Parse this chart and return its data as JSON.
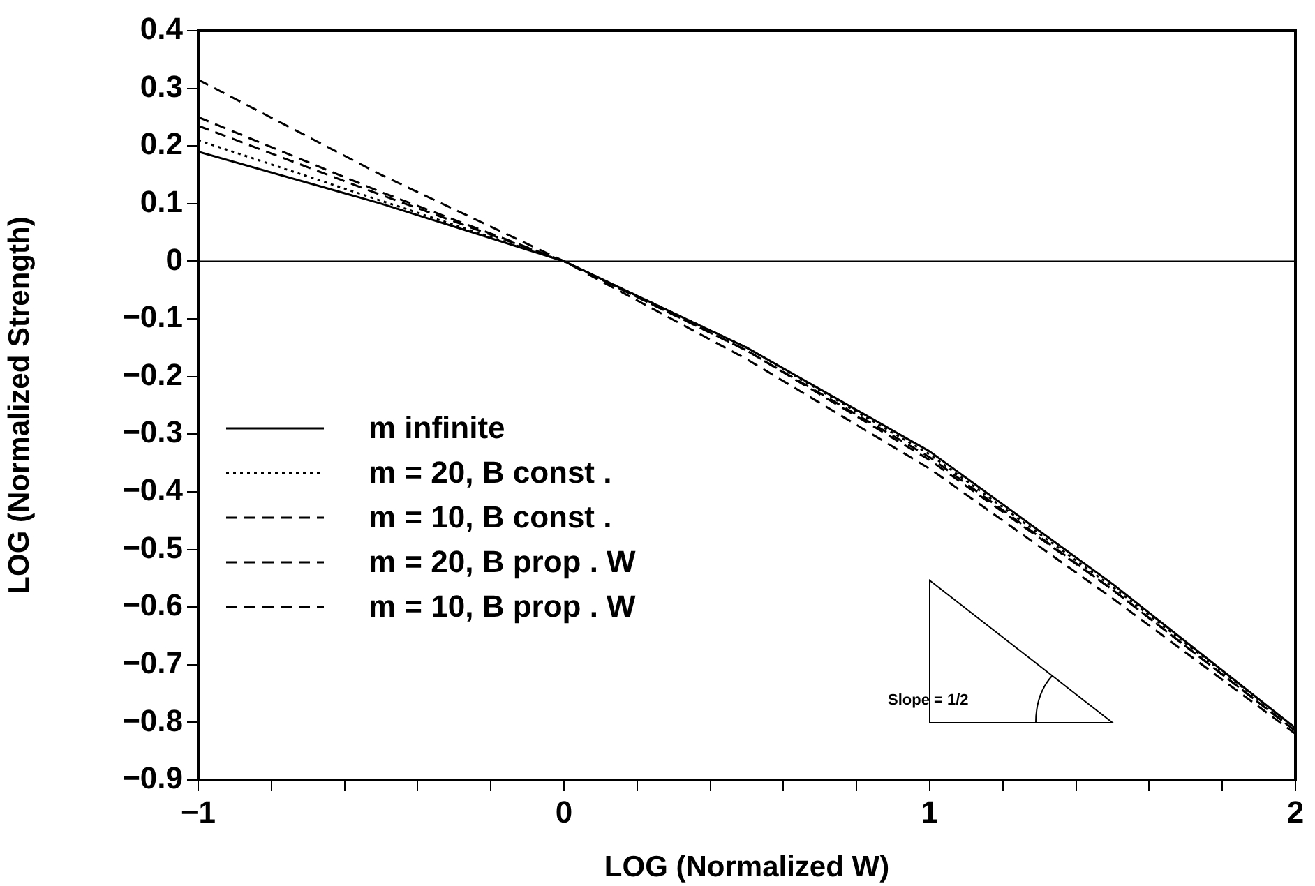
{
  "chart_data": {
    "type": "line",
    "xlabel": "LOG (Normalized W)",
    "ylabel": "LOG (Normalized Strength)",
    "x": [
      -1,
      -0.5,
      0,
      0.5,
      1,
      1.5,
      2
    ],
    "series": [
      {
        "name": "m infinite",
        "color": "#000000",
        "line_style": "solid",
        "values": [
          0.19,
          0.1,
          0,
          -0.15,
          -0.33,
          -0.56,
          -0.81
        ]
      },
      {
        "name": "m = 20, B const .",
        "color": "#000000",
        "line_style": "dotted",
        "values": [
          0.21,
          0.105,
          0,
          -0.15,
          -0.335,
          -0.565,
          -0.81
        ]
      },
      {
        "name": "m = 10, B const .",
        "color": "#000000",
        "line_style": "dashed",
        "values": [
          0.235,
          0.115,
          0,
          -0.155,
          -0.34,
          -0.57,
          -0.815
        ]
      },
      {
        "name": "m = 20, B prop .  W",
        "color": "#000000",
        "line_style": "dashed",
        "values": [
          0.25,
          0.12,
          0,
          -0.155,
          -0.345,
          -0.57,
          -0.815
        ]
      },
      {
        "name": "m = 10, B prop .  W",
        "color": "#000000",
        "line_style": "dashed",
        "values": [
          0.315,
          0.15,
          0,
          -0.17,
          -0.36,
          -0.585,
          -0.82
        ]
      }
    ],
    "xlim": [
      -1,
      2
    ],
    "xticks": [
      -1,
      {
        "value": -0.8,
        "label": null
      },
      {
        "value": -0.6,
        "label": null
      },
      {
        "value": -0.4,
        "label": null
      },
      {
        "value": -0.2,
        "label": null
      },
      0,
      {
        "value": 0.2,
        "label": null
      },
      {
        "value": 0.4,
        "label": null
      },
      {
        "value": 0.6,
        "label": null
      },
      {
        "value": 0.8,
        "label": null
      },
      1,
      {
        "value": 1.2,
        "label": null
      },
      {
        "value": 1.4,
        "label": null
      },
      {
        "value": 1.6,
        "label": null
      },
      {
        "value": 1.8,
        "label": null
      },
      2
    ],
    "ylim": [
      -0.9,
      0.4
    ],
    "yticks": [
      -0.9,
      -0.8,
      -0.7,
      -0.6,
      -0.5,
      -0.4,
      -0.3,
      -0.2,
      -0.1,
      0,
      0.1,
      0.2,
      0.3,
      0.4
    ],
    "ref_lines": [
      {
        "axis": "y",
        "value": 0,
        "color": "#000000"
      }
    ],
    "annotations": [
      "Slope = 1/2"
    ],
    "grid": false,
    "legend": "left",
    "marker": "none"
  }
}
